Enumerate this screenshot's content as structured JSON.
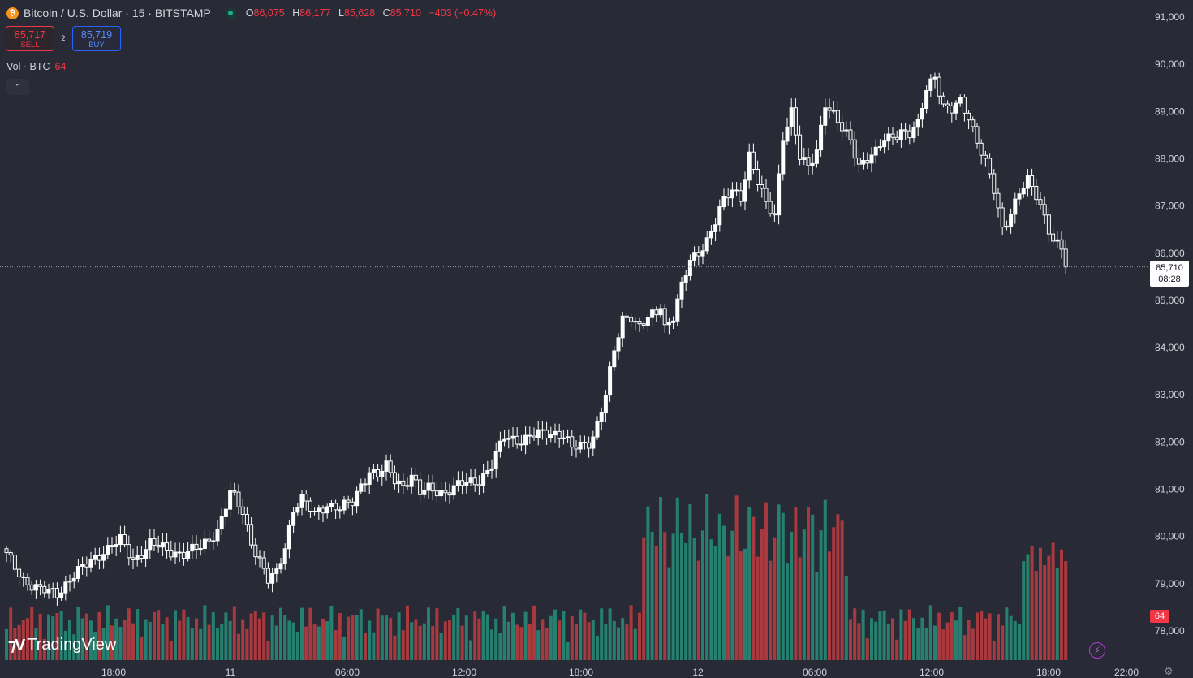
{
  "header": {
    "coin_icon": "bitcoin-icon",
    "coin_glyph": "₿",
    "title": "Bitcoin / U.S. Dollar · 15 · BITSTAMP",
    "ohlc": {
      "o_label": "O",
      "o": "86,075",
      "h_label": "H",
      "h": "86,177",
      "l_label": "L",
      "l": "85,628",
      "c_label": "C",
      "c": "85,710",
      "chg": "−403 (−0.47%)"
    }
  },
  "trade": {
    "sell_price": "85,717",
    "sell_label": "SELL",
    "spread": "2",
    "buy_price": "85,719",
    "buy_label": "BUY"
  },
  "volume_legend": {
    "label": "Vol · BTC",
    "value": "64"
  },
  "price_tag": {
    "price": "85,710",
    "countdown": "08:28"
  },
  "volume_tag": "64",
  "branding": {
    "name": "TradingView"
  },
  "colors": {
    "up": "#ffffff",
    "down": "#ffffff",
    "vol_up": "#26806f",
    "vol_down": "#a8393f",
    "background": "#282b36",
    "accent_red": "#f23645"
  },
  "chart_data": {
    "type": "candlestick",
    "interval": "15",
    "yticks": [
      78000,
      79000,
      80000,
      81000,
      82000,
      83000,
      84000,
      85000,
      86000,
      87000,
      88000,
      89000,
      90000,
      91000
    ],
    "ytick_labels": [
      "78,000",
      "79,000",
      "80,000",
      "81,000",
      "82,000",
      "83,000",
      "84,000",
      "85,000",
      "86,000",
      "87,000",
      "88,000",
      "89,000",
      "90,000",
      "91,000"
    ],
    "xtick_labels": [
      "18:00",
      "11",
      "06:00",
      "12:00",
      "18:00",
      "12",
      "06:00",
      "12:00",
      "18:00",
      "22:00"
    ],
    "last_price": 85710,
    "price_path": [
      [
        0,
        79600
      ],
      [
        4,
        79100
      ],
      [
        8,
        78850
      ],
      [
        12,
        78800
      ],
      [
        15,
        79100
      ],
      [
        19,
        79400
      ],
      [
        23,
        79700
      ],
      [
        27,
        79900
      ],
      [
        30,
        79500
      ],
      [
        34,
        79850
      ],
      [
        38,
        79700
      ],
      [
        42,
        79650
      ],
      [
        46,
        79750
      ],
      [
        50,
        80150
      ],
      [
        53,
        80900
      ],
      [
        54,
        80800
      ],
      [
        56,
        80500
      ],
      [
        58,
        79900
      ],
      [
        60,
        79500
      ],
      [
        62,
        79050
      ],
      [
        64,
        79200
      ],
      [
        66,
        79800
      ],
      [
        68,
        80600
      ],
      [
        70,
        80800
      ],
      [
        73,
        80450
      ],
      [
        76,
        80700
      ],
      [
        79,
        80600
      ],
      [
        82,
        80700
      ],
      [
        84,
        81100
      ],
      [
        86,
        81400
      ],
      [
        88,
        81300
      ],
      [
        90,
        81450
      ],
      [
        92,
        81200
      ],
      [
        94,
        81100
      ],
      [
        96,
        81300
      ],
      [
        98,
        80900
      ],
      [
        100,
        81000
      ],
      [
        104,
        80950
      ],
      [
        108,
        81100
      ],
      [
        112,
        81200
      ],
      [
        115,
        81500
      ],
      [
        118,
        82100
      ],
      [
        122,
        82050
      ],
      [
        126,
        82150
      ],
      [
        130,
        82200
      ],
      [
        132,
        82150
      ],
      [
        134,
        81850
      ],
      [
        136,
        81900
      ],
      [
        138,
        82000
      ],
      [
        139,
        82150
      ],
      [
        140,
        82400
      ],
      [
        141,
        82700
      ],
      [
        142,
        83000
      ],
      [
        144,
        83900
      ],
      [
        146,
        84600
      ],
      [
        148,
        84700
      ],
      [
        150,
        84450
      ],
      [
        152,
        84600
      ],
      [
        154,
        84700
      ],
      [
        155,
        84900
      ],
      [
        156,
        84450
      ],
      [
        158,
        84700
      ],
      [
        160,
        85300
      ],
      [
        162,
        85800
      ],
      [
        164,
        86000
      ],
      [
        166,
        86300
      ],
      [
        168,
        86700
      ],
      [
        170,
        87100
      ],
      [
        172,
        87300
      ],
      [
        174,
        87200
      ],
      [
        176,
        88100
      ],
      [
        178,
        87500
      ],
      [
        180,
        87000
      ],
      [
        182,
        86800
      ],
      [
        184,
        88500
      ],
      [
        186,
        89000
      ],
      [
        188,
        88000
      ],
      [
        190,
        87800
      ],
      [
        192,
        88200
      ],
      [
        194,
        89200
      ],
      [
        196,
        88900
      ],
      [
        198,
        88600
      ],
      [
        200,
        88400
      ],
      [
        202,
        87900
      ],
      [
        204,
        88000
      ],
      [
        206,
        88100
      ],
      [
        208,
        88400
      ],
      [
        210,
        88500
      ],
      [
        212,
        88600
      ],
      [
        214,
        88500
      ],
      [
        216,
        88700
      ],
      [
        218,
        89500
      ],
      [
        220,
        89800
      ],
      [
        222,
        89100
      ],
      [
        224,
        89000
      ],
      [
        226,
        89200
      ],
      [
        228,
        88900
      ],
      [
        230,
        88400
      ],
      [
        232,
        87900
      ],
      [
        234,
        87300
      ],
      [
        236,
        86500
      ],
      [
        238,
        86900
      ],
      [
        240,
        87300
      ],
      [
        242,
        87500
      ],
      [
        244,
        87200
      ],
      [
        246,
        86800
      ],
      [
        248,
        86300
      ],
      [
        250,
        86100
      ],
      [
        251,
        85710
      ]
    ],
    "volume_note": "volume bars per candle, red = down, green = up"
  }
}
